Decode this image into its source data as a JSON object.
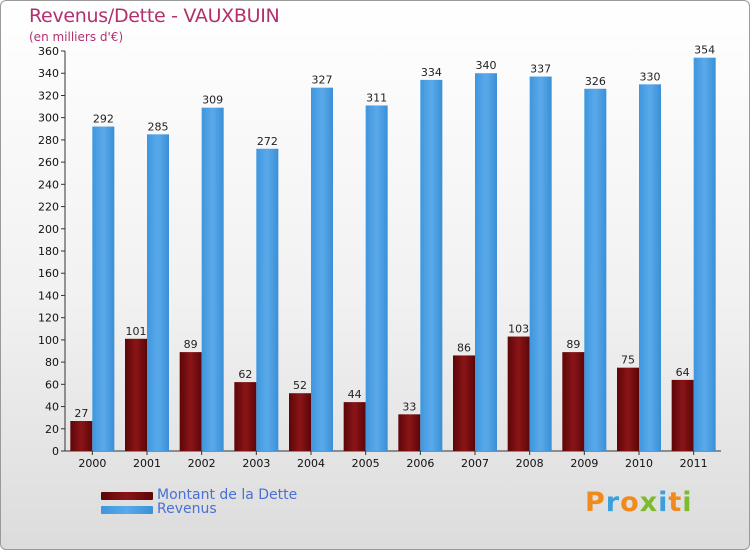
{
  "chart_data": {
    "type": "bar",
    "title": "Revenus/Dette - VAUXBUIN",
    "subtitle": "(en milliers d'€)",
    "categories": [
      "2000",
      "2001",
      "2002",
      "2003",
      "2004",
      "2005",
      "2006",
      "2007",
      "2008",
      "2009",
      "2010",
      "2011"
    ],
    "series": [
      {
        "name": "Montant de la Dette",
        "color": "#7a0f12",
        "values": [
          27,
          101,
          89,
          62,
          52,
          44,
          33,
          86,
          103,
          89,
          75,
          64
        ]
      },
      {
        "name": "Revenus",
        "color": "#4ca0e2",
        "values": [
          292,
          285,
          309,
          272,
          327,
          311,
          334,
          340,
          337,
          326,
          330,
          354
        ]
      }
    ],
    "ylim": [
      0,
      360
    ],
    "yticks": [
      0,
      20,
      40,
      60,
      80,
      100,
      120,
      140,
      160,
      180,
      200,
      220,
      240,
      260,
      280,
      300,
      320,
      340,
      360
    ],
    "grid": false,
    "legend_position": "bottom-left"
  },
  "logo": {
    "text": "Proxiti",
    "letters": [
      {
        "ch": "P",
        "color": "#f08a1c"
      },
      {
        "ch": "r",
        "color": "#3aa0dd"
      },
      {
        "ch": "o",
        "color": "#f08a1c"
      },
      {
        "ch": "x",
        "color": "#7dbb2a"
      },
      {
        "ch": "i",
        "color": "#3aa0dd"
      },
      {
        "ch": "t",
        "color": "#f08a1c"
      },
      {
        "ch": "i",
        "color": "#7dbb2a"
      }
    ]
  }
}
